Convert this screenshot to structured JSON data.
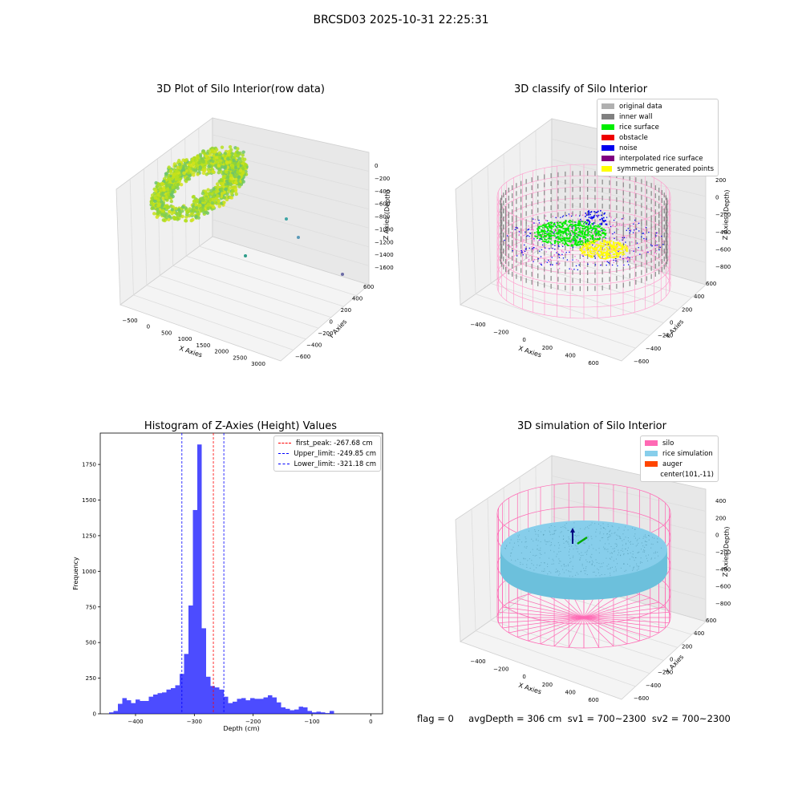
{
  "suptitle": "BRCSD03 2025-10-31 22:25:31",
  "panels": {
    "raw": {
      "title": "3D Plot of Silo Interior(row data)",
      "xlabel": "X Axies",
      "ylabel": "Y Axies",
      "zlabel": "Z Axies (Depth)",
      "xticks": [
        "−500",
        "0",
        "500",
        "1000",
        "1500",
        "2000",
        "2500",
        "3000"
      ],
      "yticks": [
        "−600",
        "−400",
        "−200",
        "0",
        "200",
        "400",
        "600"
      ],
      "zticks": [
        "0",
        "−200",
        "−400",
        "−600",
        "−800",
        "−1000",
        "−1200",
        "−1400",
        "−1600"
      ]
    },
    "classify": {
      "title": "3D classify of Silo Interior",
      "xlabel": "X Axies",
      "ylabel": "Y Axies",
      "zlabel": "Z Axies (Depth)",
      "xticks": [
        "−400",
        "−200",
        "0",
        "200",
        "400",
        "600"
      ],
      "yticks": [
        "−600",
        "−400",
        "−200",
        "0",
        "200",
        "400",
        "600"
      ],
      "zticks": [
        "200",
        "0",
        "−200",
        "−400",
        "−600",
        "−800"
      ],
      "legend": [
        {
          "label": "original data",
          "color": "#b0b0b0"
        },
        {
          "label": "inner wall",
          "color": "#808080"
        },
        {
          "label": "rice surface",
          "color": "#00ee00"
        },
        {
          "label": "obstacle",
          "color": "#ee0000"
        },
        {
          "label": "noise",
          "color": "#0000ee"
        },
        {
          "label": "interpolated rice surface",
          "color": "#800080"
        },
        {
          "label": "symmetric generated points",
          "color": "#ffff00"
        }
      ]
    },
    "simulation": {
      "title": "3D simulation of Silo Interior",
      "xlabel": "X Axies",
      "ylabel": "Y Axies",
      "zlabel": "Z Axies (Depth)",
      "xticks": [
        "−400",
        "−200",
        "0",
        "200",
        "400",
        "600"
      ],
      "yticks": [
        "−600",
        "−400",
        "−200",
        "0",
        "200",
        "400",
        "600"
      ],
      "zticks": [
        "400",
        "200",
        "0",
        "−200",
        "−400",
        "−600",
        "−800"
      ],
      "legend": [
        {
          "label": "silo",
          "color": "#ff69b4"
        },
        {
          "label": "rice simulation",
          "color": "#87ceeb"
        },
        {
          "label": "auger",
          "color": "#ff4500"
        },
        {
          "label": "center(101,-11)",
          "color": ""
        }
      ]
    }
  },
  "chart_data": {
    "type": "bar",
    "title": "Histogram of Z-Axies (Height) Values",
    "xlabel": "Depth (cm)",
    "ylabel": "Frequency",
    "xlim": [
      -460,
      20
    ],
    "ylim": [
      0,
      1970
    ],
    "xticks": [
      -400,
      -300,
      -200,
      -100,
      0
    ],
    "yticks": [
      0,
      250,
      500,
      750,
      1000,
      1250,
      1500,
      1750
    ],
    "bin_start": -445,
    "bin_width": 7.5,
    "values": [
      10,
      20,
      70,
      110,
      95,
      75,
      100,
      90,
      90,
      120,
      135,
      145,
      150,
      170,
      180,
      200,
      280,
      420,
      760,
      1430,
      1890,
      600,
      260,
      195,
      185,
      170,
      120,
      75,
      85,
      105,
      110,
      95,
      110,
      105,
      105,
      115,
      130,
      115,
      80,
      45,
      35,
      25,
      30,
      50,
      45,
      20,
      10,
      15,
      10,
      5,
      20
    ],
    "bar_color": "#0000ff",
    "bar_alpha": 0.7,
    "vlines": [
      {
        "label": "first_peak: -267.68 cm",
        "x": -267.68,
        "color": "#ff0000"
      },
      {
        "label": "Upper_limit: -249.85 cm",
        "x": -249.85,
        "color": "#0000ff"
      },
      {
        "label": "Lower_limit: -321.18 cm",
        "x": -321.18,
        "color": "#0000ff"
      }
    ],
    "legend_position": "top-right"
  },
  "footer": "flag = 0     avgDepth = 306 cm  sv1 = 700~2300  sv2 = 700~2300"
}
